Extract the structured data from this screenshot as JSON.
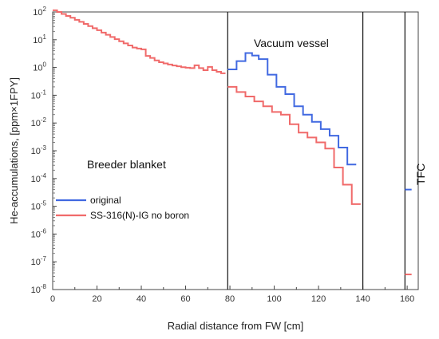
{
  "chart_data": {
    "type": "line",
    "title": "",
    "xlabel": "Radial distance from FW [cm]",
    "ylabel": "He-accumulations, [ppm×1FPY]",
    "xlim": [
      0,
      165
    ],
    "ylim_exponents": [
      -8,
      2
    ],
    "y_scale": "log",
    "x_ticks": [
      "0",
      "20",
      "40",
      "60",
      "80",
      "100",
      "120",
      "140",
      "160"
    ],
    "x_tick_values": [
      0,
      20,
      40,
      60,
      80,
      100,
      120,
      140,
      160
    ],
    "y_tick_exponents": [
      -8,
      -7,
      -6,
      -5,
      -4,
      -3,
      -2,
      -1,
      0,
      1,
      2
    ],
    "region_boundaries_x": [
      79,
      140,
      159
    ],
    "annotations": {
      "breeder": "Breeder blanket",
      "vessel": "Vacuum vessel",
      "tfc": "TFC"
    },
    "legend": {
      "placement": "left-middle"
    },
    "series": [
      {
        "name": "original",
        "color": "#4169e1",
        "segments": [
          {
            "steps": [
              [
                79,
                0.85
              ],
              [
                83,
                1.7
              ],
              [
                87,
                3.3
              ],
              [
                90,
                2.7
              ],
              [
                93,
                2.0
              ],
              [
                97,
                0.55
              ],
              [
                101,
                0.2
              ],
              [
                105,
                0.11
              ],
              [
                109,
                0.04
              ],
              [
                113,
                0.02
              ],
              [
                117,
                0.011
              ],
              [
                121,
                0.006
              ],
              [
                125,
                0.0035
              ],
              [
                129,
                0.0013
              ],
              [
                133,
                0.00032
              ],
              [
                137,
                0.00032
              ]
            ]
          },
          {
            "steps": [
              [
                159,
                4e-05
              ],
              [
                162,
                4e-05
              ]
            ]
          }
        ]
      },
      {
        "name": "SS-316(N)-IG no boron",
        "color": "#f06a6a",
        "segments": [
          {
            "steps": [
              [
                0,
                115
              ],
              [
                2,
                100
              ],
              [
                4,
                85
              ],
              [
                6,
                72
              ],
              [
                8,
                62
              ],
              [
                10,
                52
              ],
              [
                12,
                44
              ],
              [
                14,
                37
              ],
              [
                16,
                31
              ],
              [
                18,
                26
              ],
              [
                20,
                22
              ],
              [
                22,
                18
              ],
              [
                24,
                15
              ],
              [
                26,
                12.5
              ],
              [
                28,
                10.5
              ],
              [
                30,
                8.8
              ],
              [
                32,
                7.4
              ],
              [
                34,
                6.2
              ],
              [
                36,
                5.2
              ],
              [
                38,
                4.8
              ],
              [
                40,
                4.5
              ],
              [
                42,
                2.6
              ],
              [
                44,
                2.2
              ],
              [
                46,
                1.8
              ],
              [
                48,
                1.55
              ],
              [
                50,
                1.4
              ],
              [
                52,
                1.28
              ],
              [
                54,
                1.18
              ],
              [
                56,
                1.1
              ],
              [
                58,
                1.02
              ],
              [
                60,
                0.98
              ],
              [
                62,
                0.95
              ],
              [
                64,
                1.2
              ],
              [
                66,
                0.95
              ],
              [
                68,
                0.8
              ],
              [
                70,
                1.05
              ],
              [
                72,
                0.8
              ],
              [
                74,
                0.7
              ],
              [
                76,
                0.62
              ],
              [
                78,
                0.62
              ]
            ]
          },
          {
            "steps": [
              [
                79,
                0.2
              ],
              [
                83,
                0.13
              ],
              [
                87,
                0.09
              ],
              [
                91,
                0.06
              ],
              [
                95,
                0.04
              ],
              [
                99,
                0.025
              ],
              [
                103,
                0.02
              ],
              [
                107,
                0.009
              ],
              [
                111,
                0.0045
              ],
              [
                115,
                0.003
              ],
              [
                119,
                0.002
              ],
              [
                123,
                0.0012
              ],
              [
                127,
                0.00025
              ],
              [
                131,
                6e-05
              ],
              [
                135,
                1.2e-05
              ],
              [
                139,
                1.2e-05
              ]
            ]
          },
          {
            "steps": [
              [
                159,
                3.5e-08
              ],
              [
                162,
                3.5e-08
              ]
            ]
          }
        ]
      }
    ]
  }
}
